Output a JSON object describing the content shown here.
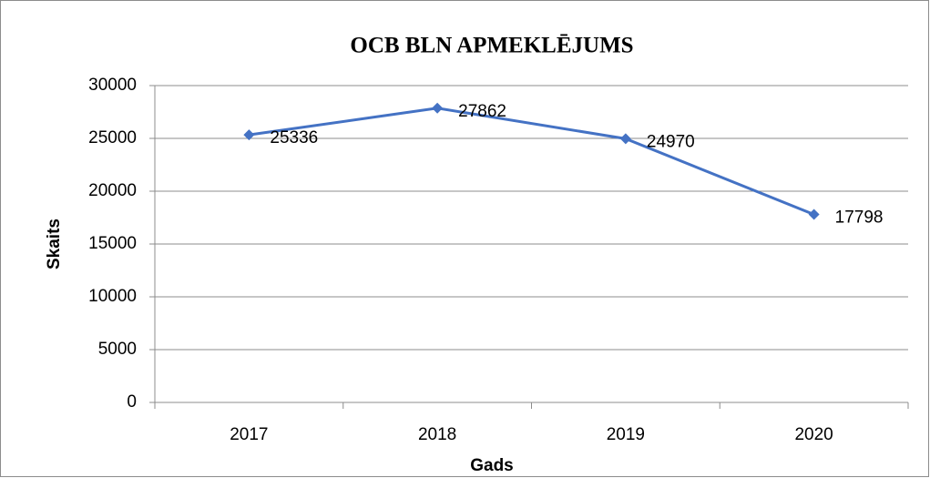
{
  "chart_data": {
    "type": "line",
    "title": "OCB BLN APMEKLĒJUMS",
    "x_label": "Gads",
    "y_label": "Skaits",
    "categories": [
      "2017",
      "2018",
      "2019",
      "2020"
    ],
    "series": [
      {
        "name": "Skaits",
        "color": "#4472c4",
        "values": [
          25336,
          27862,
          24970,
          17798
        ]
      }
    ],
    "ylim": [
      0,
      30000
    ],
    "yticks": [
      0,
      5000,
      10000,
      15000,
      20000,
      25000,
      30000
    ],
    "grid": true
  }
}
